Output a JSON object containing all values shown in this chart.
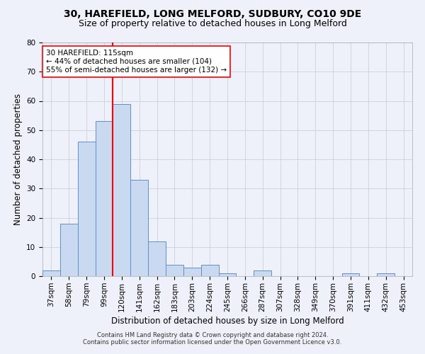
{
  "title_line1": "30, HAREFIELD, LONG MELFORD, SUDBURY, CO10 9DE",
  "title_line2": "Size of property relative to detached houses in Long Melford",
  "xlabel": "Distribution of detached houses by size in Long Melford",
  "ylabel": "Number of detached properties",
  "footer_line1": "Contains HM Land Registry data © Crown copyright and database right 2024.",
  "footer_line2": "Contains public sector information licensed under the Open Government Licence v3.0.",
  "categories": [
    "37sqm",
    "58sqm",
    "79sqm",
    "99sqm",
    "120sqm",
    "141sqm",
    "162sqm",
    "183sqm",
    "203sqm",
    "224sqm",
    "245sqm",
    "266sqm",
    "287sqm",
    "307sqm",
    "328sqm",
    "349sqm",
    "370sqm",
    "391sqm",
    "411sqm",
    "432sqm",
    "453sqm"
  ],
  "values": [
    2,
    18,
    46,
    53,
    59,
    33,
    12,
    4,
    3,
    4,
    1,
    0,
    2,
    0,
    0,
    0,
    0,
    1,
    0,
    1,
    0
  ],
  "bar_color": "#c9d9f0",
  "bar_edge_color": "#6090c8",
  "vline_x": 3.5,
  "vline_color": "red",
  "annotation_text": "30 HAREFIELD: 115sqm\n← 44% of detached houses are smaller (104)\n55% of semi-detached houses are larger (132) →",
  "annotation_box_color": "white",
  "annotation_box_edge_color": "red",
  "ylim": [
    0,
    80
  ],
  "yticks": [
    0,
    10,
    20,
    30,
    40,
    50,
    60,
    70,
    80
  ],
  "grid_color": "#c8c8d8",
  "background_color": "#eef0fa",
  "title_fontsize": 10,
  "subtitle_fontsize": 9,
  "tick_fontsize": 7.5,
  "ylabel_fontsize": 8.5,
  "xlabel_fontsize": 8.5,
  "annotation_fontsize": 7.5,
  "footer_fontsize": 6.0
}
